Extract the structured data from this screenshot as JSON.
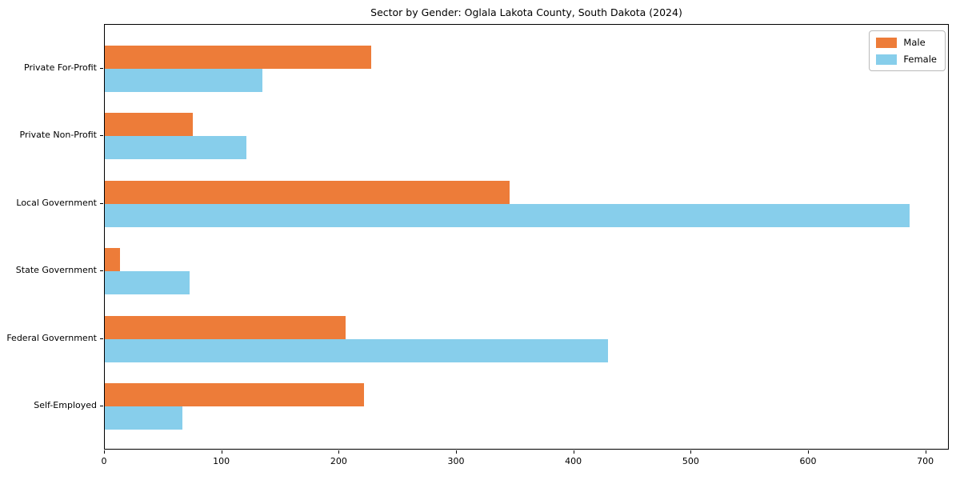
{
  "chart_data": {
    "type": "bar",
    "orientation": "horizontal",
    "title": "Sector by Gender: Oglala Lakota County, South Dakota (2024)",
    "categories": [
      "Private For-Profit",
      "Private Non-Profit",
      "Local Government",
      "State Government",
      "Federal Government",
      "Self-Employed"
    ],
    "series": [
      {
        "name": "Male",
        "color": "#ed7c39",
        "values": [
          227,
          75,
          345,
          13,
          205,
          221
        ]
      },
      {
        "name": "Female",
        "color": "#87ceeb",
        "values": [
          134,
          121,
          686,
          72,
          429,
          66
        ]
      }
    ],
    "xlabel": "",
    "ylabel": "",
    "xlim": [
      0,
      720
    ],
    "xticks": [
      0,
      100,
      200,
      300,
      400,
      500,
      600,
      700
    ],
    "grid": false,
    "legend_position": "upper right",
    "background_color": "#ffffff",
    "axis_color": "#000000"
  }
}
